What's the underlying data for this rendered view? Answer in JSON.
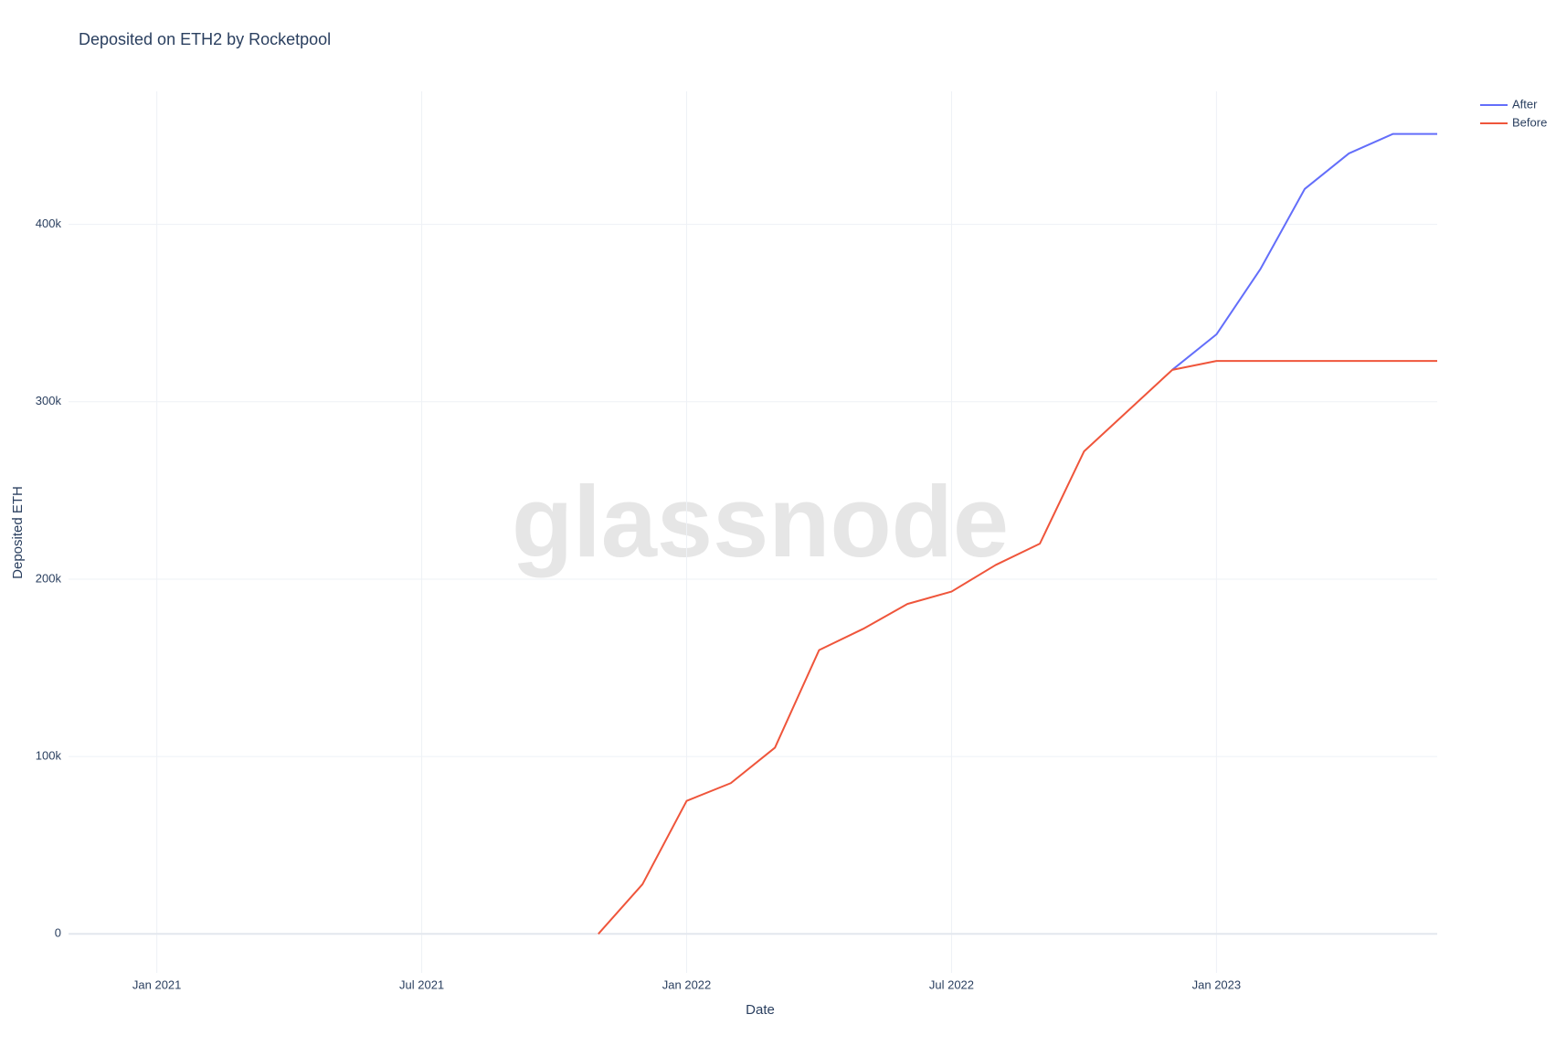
{
  "chart_data": {
    "type": "line",
    "title": "Deposited on ETH2 by Rocketpool",
    "watermark": "glassnode",
    "x_label": "Date",
    "y_label": "Deposited ETH",
    "x": [
      "2021-11",
      "2021-12",
      "2022-01",
      "2022-02",
      "2022-03",
      "2022-04",
      "2022-05",
      "2022-06",
      "2022-07",
      "2022-08",
      "2022-09",
      "2022-10",
      "2022-11",
      "2022-12",
      "2023-01",
      "2023-02",
      "2023-03",
      "2023-04",
      "2023-05",
      "2023-06"
    ],
    "series": [
      {
        "name": "After",
        "color": "#636efa",
        "values": [
          null,
          null,
          null,
          null,
          null,
          null,
          null,
          null,
          null,
          null,
          null,
          null,
          null,
          318000,
          338000,
          375000,
          420000,
          440000,
          451000,
          451000
        ]
      },
      {
        "name": "Before",
        "color": "#ef553b",
        "values": [
          0,
          28000,
          75000,
          85000,
          105000,
          160000,
          172000,
          186000,
          193000,
          208000,
          220000,
          272000,
          295000,
          318000,
          323000,
          323000,
          323000,
          323000,
          323000,
          323000
        ]
      }
    ],
    "xlim": [
      "2020-11",
      "2023-06"
    ],
    "xticks": [
      {
        "value": "2021-01",
        "label": "Jan 2021"
      },
      {
        "value": "2021-07",
        "label": "Jul 2021"
      },
      {
        "value": "2022-01",
        "label": "Jan 2022"
      },
      {
        "value": "2022-07",
        "label": "Jul 2022"
      },
      {
        "value": "2023-01",
        "label": "Jan 2023"
      }
    ],
    "ylim": [
      -22000,
      475000
    ],
    "yticks": [
      0,
      {
        "value": 100000,
        "label": "100k"
      },
      {
        "value": 200000,
        "label": "200k"
      },
      {
        "value": 300000,
        "label": "300k"
      },
      {
        "value": 400000,
        "label": "400k"
      }
    ],
    "grid": true,
    "legend": "top-right"
  }
}
